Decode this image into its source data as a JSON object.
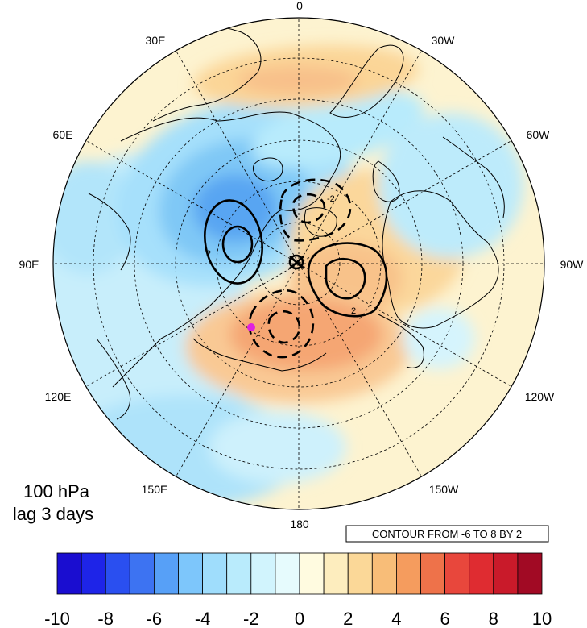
{
  "figure": {
    "level_label": "100 hPa",
    "lag_label": "lag 3 days",
    "contour_info": "CONTOUR FROM -6 TO 8 BY 2"
  },
  "map": {
    "projection": "north polar stereographic",
    "longitude_labels": [
      "0",
      "30W",
      "60W",
      "90W",
      "120W",
      "150W",
      "180",
      "150E",
      "120E",
      "90E",
      "60E",
      "30E"
    ],
    "contour_labels": [
      "2",
      "2",
      "-2"
    ],
    "contour_levels": {
      "min": -6,
      "max": 8,
      "step": 2
    },
    "marker_color": "#e020e0",
    "continent_outline_color": "#000000",
    "graticule_color": "#000000"
  },
  "colorbar": {
    "tick_labels": [
      "-10",
      "-8",
      "-6",
      "-4",
      "-2",
      "0",
      "2",
      "4",
      "6",
      "8",
      "10"
    ],
    "colors": [
      "#1a0dd0",
      "#1e24e8",
      "#2a4ff0",
      "#3d73f2",
      "#57a0f7",
      "#7dc6fb",
      "#9fddfc",
      "#b9ebfc",
      "#d1f4fd",
      "#e6fbfd",
      "#fffbe0",
      "#fdedbe",
      "#fbd898",
      "#f8bd78",
      "#f59c5e",
      "#ee724a",
      "#e8473c",
      "#df2c31",
      "#c91a2a",
      "#a10a24"
    ]
  }
}
